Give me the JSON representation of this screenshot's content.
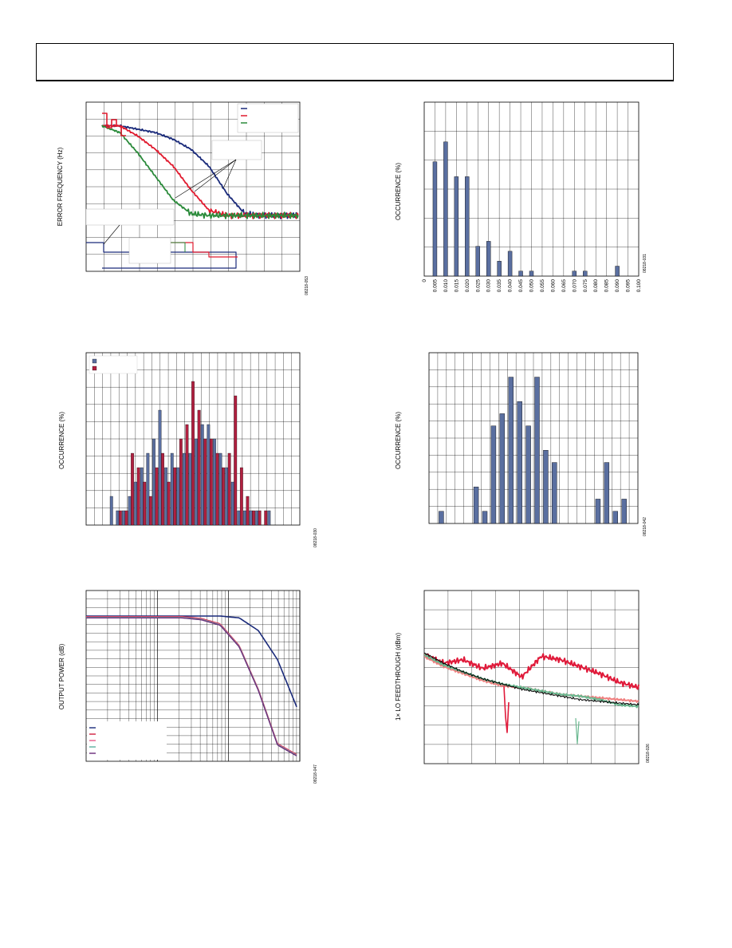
{
  "page": {
    "figures": [
      {
        "id": "error-frequency",
        "ylabel": "ERROR FREQUENCY (Hz)",
        "figure_id": "08218-053",
        "series_colors": [
          "#1a2a7a",
          "#e01a2e",
          "#2a8a3a"
        ]
      },
      {
        "id": "occurrence-top-right",
        "ylabel": "OCCURRENCE (%)",
        "figure_id": "08218-031",
        "x_ticks": [
          "0",
          "0.005",
          "0.010",
          "0.015",
          "0.020",
          "0.025",
          "0.030",
          "0.035",
          "0.040",
          "0.045",
          "0.050",
          "0.055",
          "0.060",
          "0.065",
          "0.070",
          "0.075",
          "0.080",
          "0.085",
          "0.090",
          "0.095",
          "0.100"
        ]
      },
      {
        "id": "occurrence-mid-left",
        "ylabel": "OCCURRENCE (%)",
        "figure_id": "08218-030",
        "series_colors": [
          "#5a6fa0",
          "#b02040"
        ]
      },
      {
        "id": "occurrence-mid-right",
        "ylabel": "OCCURRENCE (%)",
        "figure_id": "08218-042"
      },
      {
        "id": "output-power",
        "ylabel": "OUTPUT POWER (dB)",
        "figure_id": "08218-047",
        "series_colors": [
          "#1a2a7a",
          "#d02040",
          "#e85a8a",
          "#5ab0a0",
          "#6a2a7a"
        ]
      },
      {
        "id": "lo-feedthrough",
        "ylabel": "1× LO FEEDTHROUGH (dBm)",
        "figure_id": "08218-026",
        "series_colors": [
          "#e01a3a",
          "#f08080",
          "#6ab890",
          "#000000"
        ]
      }
    ]
  },
  "chart_data": [
    {
      "type": "line",
      "title": "",
      "ylabel": "ERROR FREQUENCY (Hz)",
      "xlabel": "",
      "series": [
        {
          "values": [
            0.86,
            0.86,
            0.84,
            0.82,
            0.78,
            0.72,
            0.62,
            0.46,
            0.34,
            0.33,
            0.33,
            0.33
          ]
        },
        {
          "values": [
            0.86,
            0.86,
            0.8,
            0.72,
            0.62,
            0.48,
            0.36,
            0.33,
            0.33,
            0.33,
            0.33,
            0.33
          ]
        },
        {
          "values": [
            0.86,
            0.82,
            0.7,
            0.56,
            0.42,
            0.34,
            0.33,
            0.33,
            0.33,
            0.33,
            0.33,
            0.33
          ]
        }
      ]
    },
    {
      "type": "bar",
      "title": "",
      "ylabel": "OCCURRENCE (%)",
      "categories": [
        "0",
        "0.005",
        "0.010",
        "0.015",
        "0.020",
        "0.025",
        "0.030",
        "0.035",
        "0.040",
        "0.045",
        "0.050",
        "0.055",
        "0.060",
        "0.065",
        "0.070",
        "0.075",
        "0.080",
        "0.085",
        "0.090",
        "0.095",
        "0.100"
      ],
      "values": [
        0,
        23,
        27,
        20,
        20,
        6,
        7,
        3,
        5,
        1,
        1,
        0,
        0,
        0,
        1,
        1,
        0,
        0,
        2,
        0,
        0
      ],
      "ylim": [
        0,
        35
      ]
    },
    {
      "type": "bar",
      "title": "",
      "ylabel": "OCCURRENCE (%)",
      "series": [
        {
          "values": [
            2,
            1,
            1,
            2,
            3,
            4,
            5,
            6,
            8,
            4,
            5,
            4,
            5,
            5,
            6,
            7,
            7,
            6,
            5,
            4,
            3,
            1,
            1,
            1,
            1,
            0,
            1,
            0,
            0,
            0
          ]
        },
        {
          "values": [
            0,
            1,
            1,
            5,
            4,
            3,
            2,
            4,
            5,
            3,
            4,
            6,
            7,
            10,
            8,
            6,
            6,
            5,
            4,
            5,
            9,
            4,
            2,
            1,
            1,
            1,
            0,
            0,
            0,
            0
          ]
        }
      ],
      "ylim": [
        0,
        12
      ]
    },
    {
      "type": "bar",
      "title": "",
      "ylabel": "OCCURRENCE (%)",
      "values": [
        0,
        1,
        0,
        0,
        0,
        3,
        1,
        8,
        9,
        12,
        10,
        8,
        12,
        6,
        5,
        0,
        0,
        0,
        0,
        2,
        5,
        1,
        2,
        0
      ],
      "ylim": [
        0,
        14
      ]
    },
    {
      "type": "line",
      "title": "",
      "ylabel": "OUTPUT POWER (dB)",
      "xlabel": "",
      "series": [
        {
          "values": [
            0,
            0,
            0,
            0,
            0,
            0,
            0,
            0,
            -0.5,
            -4,
            -12,
            -25
          ]
        },
        {
          "values": [
            0,
            0,
            0,
            0,
            0,
            0,
            -0.5,
            -2,
            -8,
            -20,
            -35,
            -38
          ]
        },
        {
          "values": [
            0,
            0,
            0,
            0,
            0,
            0,
            -0.5,
            -2,
            -8,
            -20,
            -35,
            -38
          ]
        },
        {
          "values": [
            0,
            0,
            0,
            0,
            0,
            0,
            -0.5,
            -2,
            -8,
            -20,
            -35,
            -38
          ]
        },
        {
          "values": [
            0,
            0,
            0,
            0,
            0,
            0,
            -0.5,
            -2,
            -8,
            -20,
            -35,
            -38
          ]
        }
      ]
    },
    {
      "type": "line",
      "title": "",
      "ylabel": "1× LO FEEDTHROUGH (dBm)",
      "xlabel": "",
      "series": [
        {
          "values": [
            0.63,
            0.58,
            0.6,
            0.55,
            0.58,
            0.5,
            0.62,
            0.6,
            0.56,
            0.52,
            0.47,
            0.44
          ]
        },
        {
          "values": [
            0.62,
            0.56,
            0.52,
            0.48,
            0.45,
            0.44,
            0.42,
            0.4,
            0.39,
            0.38,
            0.37,
            0.36
          ]
        },
        {
          "values": [
            0.63,
            0.57,
            0.53,
            0.49,
            0.46,
            0.44,
            0.42,
            0.4,
            0.39,
            0.37,
            0.34,
            0.33
          ]
        },
        {
          "values": [
            0.64,
            0.58,
            0.53,
            0.49,
            0.46,
            0.43,
            0.41,
            0.39,
            0.37,
            0.36,
            0.35,
            0.34
          ]
        }
      ]
    }
  ]
}
